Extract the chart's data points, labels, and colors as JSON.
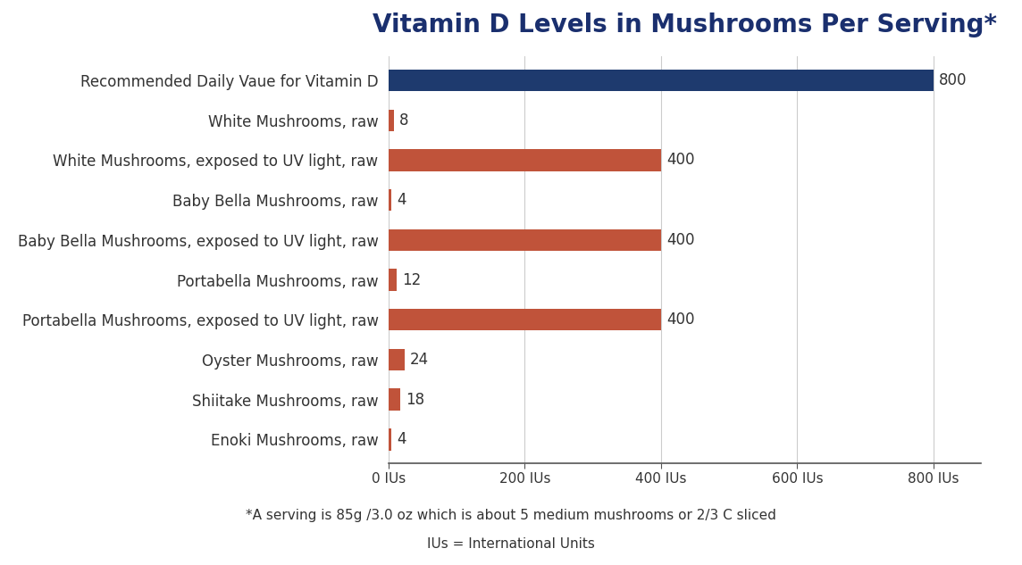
{
  "title": "Vitamin D Levels in Mushrooms Per Serving*",
  "title_color": "#1a2f6e",
  "title_fontsize": 20,
  "title_fontweight": "bold",
  "categories": [
    "Recommended Daily Vaue for Vitamin D",
    "White Mushrooms, raw",
    "White Mushrooms, exposed to UV light, raw",
    "Baby Bella Mushrooms, raw",
    "Baby Bella Mushrooms, exposed to UV light, raw",
    "Portabella Mushrooms, raw",
    "Portabella Mushrooms, exposed to UV light, raw",
    "Oyster Mushrooms, raw",
    "Shiitake Mushrooms, raw",
    "Enoki Mushrooms, raw"
  ],
  "values": [
    800,
    8,
    400,
    4,
    400,
    12,
    400,
    24,
    18,
    4
  ],
  "bar_colors": [
    "#1e3a6e",
    "#c0533a",
    "#c0533a",
    "#c0533a",
    "#c0533a",
    "#c0533a",
    "#c0533a",
    "#c0533a",
    "#c0533a",
    "#c0533a"
  ],
  "xlim": [
    0,
    870
  ],
  "xticks": [
    0,
    200,
    400,
    600,
    800
  ],
  "xtick_labels": [
    "0 IUs",
    "200 IUs",
    "400 IUs",
    "600 IUs",
    "800 IUs"
  ],
  "xlabel_fontsize": 11,
  "bar_label_fontsize": 12,
  "bar_label_color": "#333333",
  "ytick_fontsize": 12,
  "footnote1": "*A serving is 85g /3.0 oz which is about 5 medium mushrooms or 2/3 C sliced",
  "footnote2": "IUs = International Units",
  "footnote_fontsize": 11,
  "footnote_color": "#333333",
  "background_color": "#ffffff",
  "grid_color": "#cccccc",
  "bar_height": 0.55
}
